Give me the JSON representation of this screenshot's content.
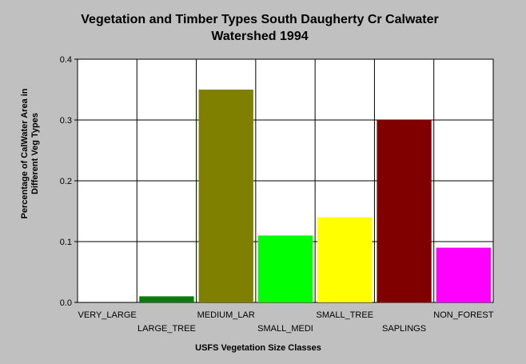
{
  "chart_data": {
    "type": "bar",
    "title_lines": [
      "Vegetation and Timber Types South Daugherty Cr Calwater",
      "Watershed 1994"
    ],
    "xlabel": "USFS Vegetation Size Classes",
    "ylabel_lines": [
      "Percentage of CalWater Area in",
      "Different Veg Types"
    ],
    "categories": [
      "VERY_LARGE",
      "LARGE_TREE",
      "MEDIUM_LAR",
      "SMALL_MEDI",
      "SMALL_TREE",
      "SAPLINGS",
      "NON_FOREST"
    ],
    "values": [
      0.0,
      0.01,
      0.35,
      0.11,
      0.14,
      0.3,
      0.09
    ],
    "colors": [
      "#008000",
      "#008000",
      "#808000",
      "#00ff00",
      "#ffff00",
      "#800000",
      "#ff00ff"
    ],
    "ylim": [
      0,
      0.4
    ],
    "yticks": [
      "0.0",
      "0.1",
      "0.2",
      "0.3",
      "0.4"
    ],
    "grid": true,
    "legend": "none"
  }
}
